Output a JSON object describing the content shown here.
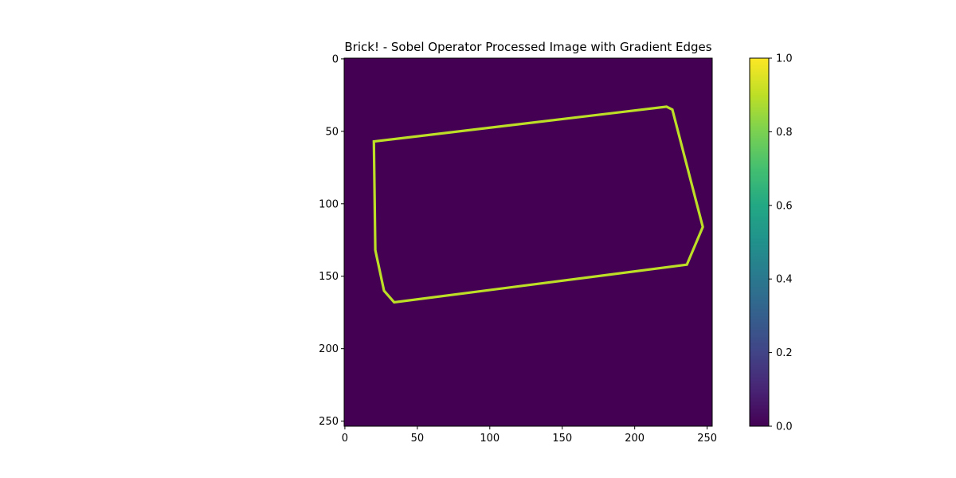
{
  "chart_data": {
    "type": "heatmap",
    "title": "Brick! - Sobel Operator Processed Image with Gradient Edges",
    "xlabel": "",
    "ylabel": "",
    "image_size": [
      254,
      254
    ],
    "x_axis": {
      "range": [
        0,
        253
      ],
      "ticks": [
        0,
        50,
        100,
        150,
        200,
        250
      ]
    },
    "y_axis": {
      "range": [
        0,
        253
      ],
      "inverted": true,
      "ticks": [
        0,
        50,
        100,
        150,
        200,
        250
      ]
    },
    "colormap": "viridis",
    "background_value": 0.0,
    "edge_value": 0.9,
    "colorbar": {
      "range": [
        0.0,
        1.0
      ],
      "ticks": [
        "0.0",
        "0.2",
        "0.4",
        "0.6",
        "0.8",
        "1.0"
      ]
    },
    "edge_polygon": [
      [
        20,
        57
      ],
      [
        222,
        33
      ],
      [
        226,
        35
      ],
      [
        247,
        116
      ],
      [
        236,
        142
      ],
      [
        34,
        168
      ],
      [
        27,
        160
      ],
      [
        21,
        132
      ]
    ],
    "grid": false,
    "legend": "none"
  }
}
